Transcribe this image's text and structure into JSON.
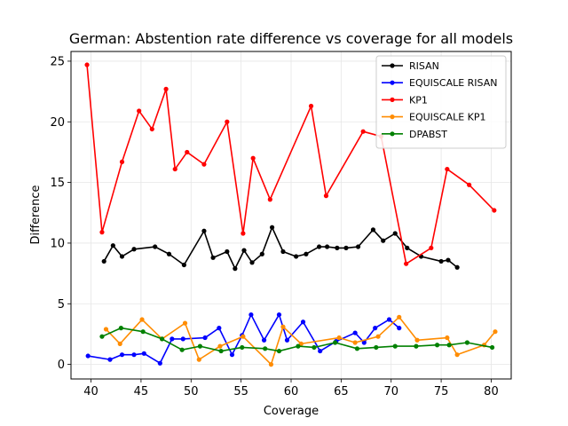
{
  "chart_data": {
    "type": "line",
    "title": "German: Abstention rate difference vs coverage for all models",
    "xlabel": "Coverage",
    "ylabel": "Difference",
    "xlim": [
      38,
      82
    ],
    "ylim": [
      -1.2,
      25.8
    ],
    "xticks": [
      40,
      45,
      50,
      55,
      60,
      65,
      70,
      75,
      80
    ],
    "yticks": [
      0,
      5,
      10,
      15,
      20,
      25
    ],
    "grid": true,
    "legend_position": "top-right",
    "series": [
      {
        "name": "RISAN",
        "color": "#000000",
        "x": [
          41.3,
          42.2,
          43.1,
          44.3,
          46.4,
          47.8,
          49.3,
          51.3,
          52.2,
          53.6,
          54.4,
          55.3,
          56.1,
          57.1,
          58.1,
          59.2,
          60.5,
          61.5,
          62.8,
          63.6,
          64.6,
          65.5,
          66.7,
          68.2,
          69.2,
          70.4,
          71.6,
          73.0,
          75.0,
          75.7,
          76.6
        ],
        "y": [
          8.5,
          9.8,
          8.9,
          9.5,
          9.7,
          9.1,
          8.2,
          11.0,
          8.8,
          9.3,
          7.9,
          9.4,
          8.4,
          9.1,
          11.3,
          9.3,
          8.9,
          9.1,
          9.7,
          9.7,
          9.6,
          9.6,
          9.7,
          11.1,
          10.2,
          10.8,
          9.6,
          8.9,
          8.5,
          8.6,
          8.0
        ]
      },
      {
        "name": "EQUISCALE RISAN",
        "color": "#0000ff",
        "x": [
          39.7,
          41.9,
          43.1,
          44.3,
          45.3,
          46.9,
          48.1,
          49.2,
          51.4,
          52.8,
          54.1,
          55.1,
          56.0,
          57.3,
          58.8,
          59.6,
          61.2,
          62.9,
          64.5,
          66.4,
          67.3,
          68.4,
          69.8,
          70.8
        ],
        "y": [
          0.7,
          0.4,
          0.8,
          0.8,
          0.9,
          0.1,
          2.1,
          2.1,
          2.2,
          3.0,
          0.8,
          2.4,
          4.1,
          2.0,
          4.1,
          2.0,
          3.5,
          1.1,
          1.9,
          2.6,
          1.8,
          3.0,
          3.7,
          3.0
        ]
      },
      {
        "name": "KP1",
        "color": "#ff0000",
        "x": [
          39.6,
          41.1,
          43.1,
          44.8,
          46.1,
          47.5,
          48.4,
          49.6,
          51.3,
          53.6,
          55.2,
          56.2,
          57.9,
          62.0,
          63.5,
          67.2,
          69.0,
          71.5,
          74.0,
          75.6,
          77.8,
          80.3
        ],
        "y": [
          24.7,
          10.9,
          16.7,
          20.9,
          19.4,
          22.7,
          16.1,
          17.5,
          16.5,
          20.0,
          10.8,
          17.0,
          13.6,
          21.3,
          13.9,
          19.2,
          18.8,
          8.3,
          9.6,
          16.1,
          14.8,
          12.7
        ]
      },
      {
        "name": "EQUISCALE KP1",
        "color": "#ff8c00",
        "x": [
          41.5,
          42.9,
          45.1,
          47.1,
          49.4,
          50.8,
          52.9,
          55.2,
          58.0,
          59.2,
          61.0,
          64.8,
          66.4,
          68.7,
          70.8,
          72.6,
          75.6,
          76.6,
          79.3,
          80.4
        ],
        "y": [
          2.9,
          1.7,
          3.7,
          2.1,
          3.4,
          0.4,
          1.5,
          2.3,
          0.0,
          3.1,
          1.7,
          2.2,
          1.8,
          2.3,
          3.9,
          2.0,
          2.2,
          0.8,
          1.6,
          2.7
        ]
      },
      {
        "name": "DPABST",
        "color": "#008000",
        "x": [
          41.1,
          43.0,
          45.2,
          47.1,
          49.1,
          50.9,
          53.0,
          55.1,
          57.4,
          58.8,
          60.7,
          62.3,
          64.4,
          66.6,
          68.5,
          70.4,
          72.5,
          74.6,
          75.8,
          77.6,
          80.1
        ],
        "y": [
          2.3,
          3.0,
          2.7,
          2.1,
          1.2,
          1.5,
          1.1,
          1.4,
          1.3,
          1.1,
          1.5,
          1.4,
          1.8,
          1.3,
          1.4,
          1.5,
          1.5,
          1.6,
          1.6,
          1.8,
          1.4
        ]
      }
    ]
  }
}
